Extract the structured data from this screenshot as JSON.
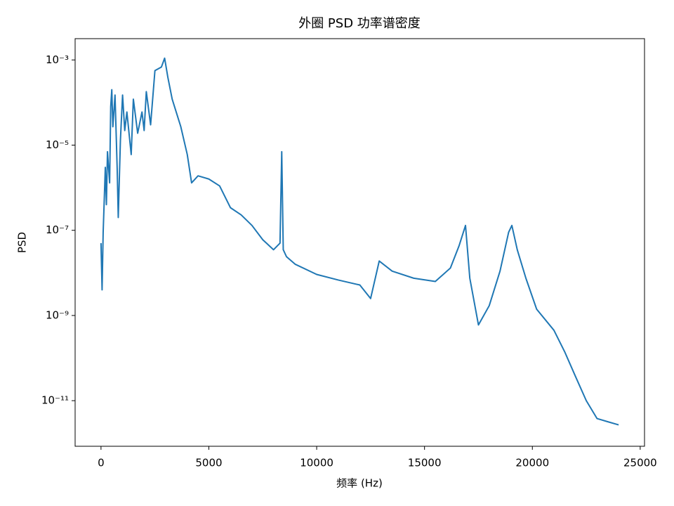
{
  "chart_data": {
    "type": "line",
    "title": "外圈 PSD 功率谱密度",
    "xlabel": "频率 (Hz)",
    "ylabel": "PSD",
    "x": [
      0,
      50,
      100,
      200,
      250,
      300,
      400,
      450,
      500,
      550,
      650,
      750,
      800,
      900,
      1000,
      1100,
      1200,
      1400,
      1500,
      1700,
      1900,
      2000,
      2100,
      2300,
      2500,
      2800,
      2950,
      3100,
      3300,
      3700,
      4000,
      4200,
      4500,
      5000,
      5500,
      6000,
      6500,
      7000,
      7500,
      8000,
      8300,
      8380,
      8450,
      8600,
      9000,
      10000,
      11000,
      12000,
      12500,
      12900,
      13500,
      14500,
      15500,
      16200,
      16600,
      16900,
      17100,
      17500,
      18000,
      18500,
      18900,
      19050,
      19300,
      19700,
      20200,
      21000,
      21500,
      22000,
      22500,
      23000,
      23500,
      24000
    ],
    "values": [
      5e-08,
      4e-09,
      9e-08,
      3e-06,
      4e-07,
      7e-06,
      1.3e-06,
      8e-05,
      0.0002,
      2.7e-05,
      0.00015,
      2.8e-06,
      2e-07,
      1.3e-05,
      0.00015,
      2.2e-05,
      6e-05,
      6e-06,
      0.00012,
      1.9e-05,
      6e-05,
      2.2e-05,
      0.00018,
      3e-05,
      0.00056,
      0.00068,
      0.0011,
      0.00039,
      0.00012,
      2.7e-05,
      6e-06,
      1.3e-06,
      1.9e-06,
      1.6e-06,
      1.1e-06,
      3.4e-07,
      2.3e-07,
      1.3e-07,
      6e-08,
      3.5e-08,
      5e-08,
      7e-06,
      3.5e-08,
      2.4e-08,
      1.6e-08,
      9.2e-09,
      6.8e-09,
      5.2e-09,
      2.5e-09,
      1.9e-08,
      1.1e-08,
      7.5e-09,
      6.3e-09,
      1.3e-08,
      4.3e-08,
      1.3e-07,
      7.5e-09,
      6e-10,
      1.7e-09,
      1.1e-08,
      9e-08,
      1.3e-07,
      3.5e-08,
      7.5e-09,
      1.4e-09,
      4.5e-10,
      1.4e-10,
      3.7e-11,
      1e-11,
      3.8e-12,
      3.2e-12,
      2.7e-12
    ],
    "color": "#1f77b4",
    "xlim": [
      -1200,
      25200
    ],
    "xticks": [
      0,
      5000,
      10000,
      15000,
      20000,
      25000
    ],
    "yscale": "log",
    "ylim": [
      0.00316,
      8.5e-13
    ],
    "yticks": [
      {
        "value": 0.001,
        "label": "10⁻³"
      },
      {
        "value": 1e-05,
        "label": "10⁻⁵"
      },
      {
        "value": 1e-07,
        "label": "10⁻⁷"
      },
      {
        "value": 1e-09,
        "label": "10⁻⁹"
      },
      {
        "value": 1e-11,
        "label": "10⁻¹¹"
      }
    ]
  }
}
